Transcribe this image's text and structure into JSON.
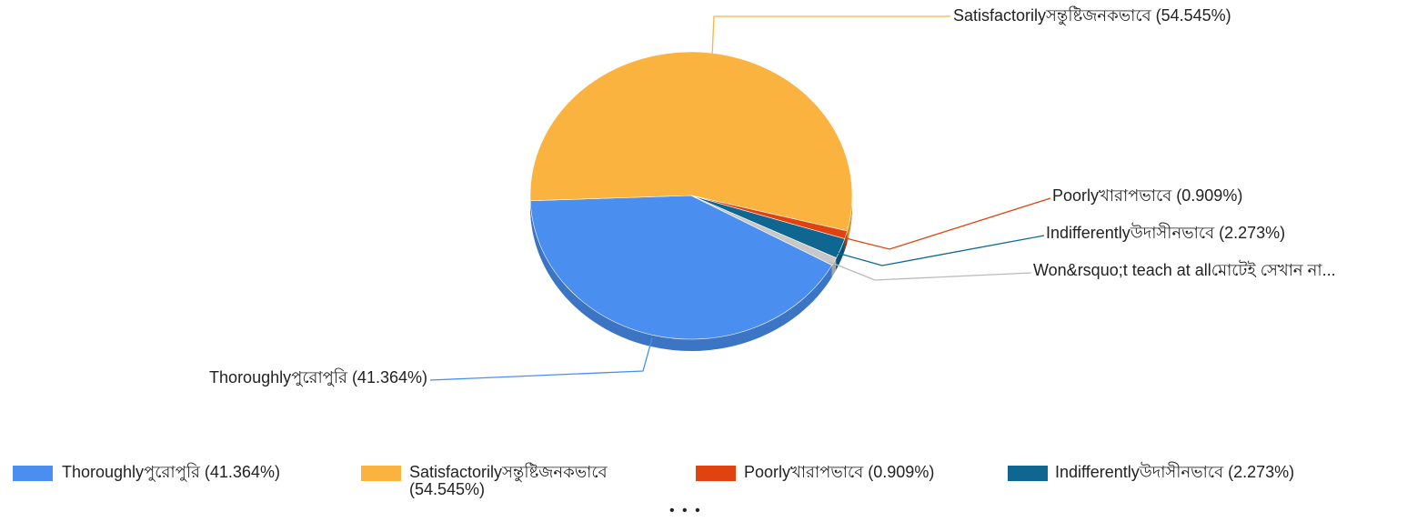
{
  "chart_data": {
    "type": "pie",
    "categories": [
      "Thoroughlyপুরোপুরি (41.364%)",
      "Satisfactorilyসন্তুষ্টিজনকভাবে (54.545%)",
      "Poorlyখারাপভাবে (0.909%)",
      "Indifferentlyউদাসীনভাবে (2.273%)",
      "Won&rsquo;t teach at allমোটেই সেখান না..."
    ],
    "values": [
      41.364,
      54.545,
      0.909,
      2.273,
      0.909
    ],
    "colors": [
      "#4a8ff0",
      "#fbb33f",
      "#e0430f",
      "#0f6690",
      "#c8c8c8"
    ],
    "legend_more": "• • •"
  }
}
